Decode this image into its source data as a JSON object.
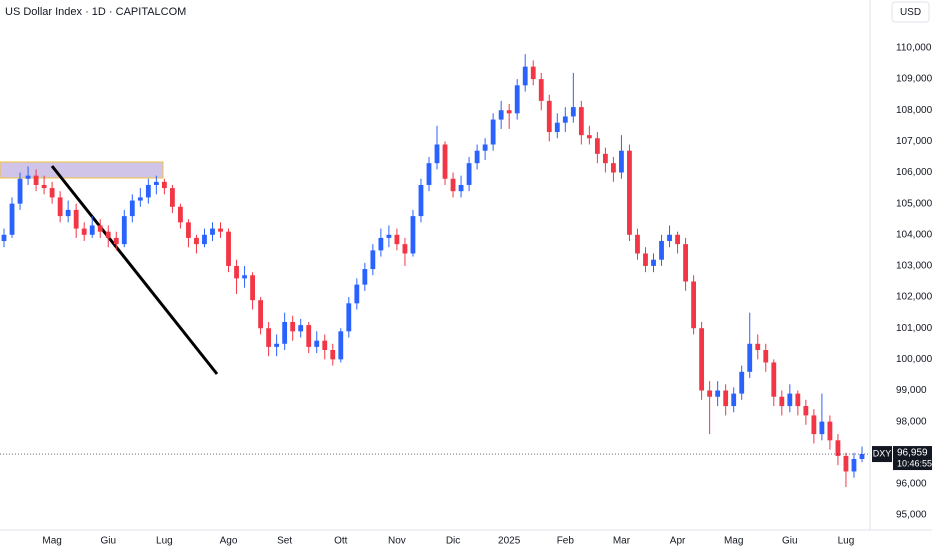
{
  "chart_data": {
    "type": "candlestick",
    "title": "US Dollar Index · 1D · CAPITALCOM",
    "currency": "USD",
    "symbol": "DXY",
    "last_price": {
      "value": 96.959,
      "label": "96,959"
    },
    "countdown": "10:46:55",
    "up_color": "#2962ff",
    "down_color": "#f23645",
    "ylim": [
      94.52,
      111.54
    ],
    "yticks": [
      {
        "value": 95,
        "label": "95,000"
      },
      {
        "value": 96,
        "label": "96,000"
      },
      {
        "value": 97,
        "label": "97,000"
      },
      {
        "value": 98,
        "label": "98,000"
      },
      {
        "value": 99,
        "label": "99,000"
      },
      {
        "value": 100,
        "label": "100,000"
      },
      {
        "value": 101,
        "label": "101,000"
      },
      {
        "value": 102,
        "label": "102,000"
      },
      {
        "value": 103,
        "label": "103,000"
      },
      {
        "value": 104,
        "label": "104,000"
      },
      {
        "value": 105,
        "label": "105,000"
      },
      {
        "value": 106,
        "label": "106,000"
      },
      {
        "value": 107,
        "label": "107,000"
      },
      {
        "value": 108,
        "label": "108,000"
      },
      {
        "value": 109,
        "label": "109,000"
      },
      {
        "value": 110,
        "label": "110,000"
      }
    ],
    "categories": [
      null,
      null,
      null,
      null,
      null,
      null,
      "Mag",
      null,
      null,
      null,
      null,
      null,
      null,
      "Giu",
      null,
      null,
      null,
      null,
      null,
      null,
      "Lug",
      null,
      null,
      null,
      null,
      null,
      null,
      null,
      "Ago",
      null,
      null,
      null,
      null,
      null,
      null,
      "Set",
      null,
      null,
      null,
      null,
      null,
      null,
      "Ott",
      null,
      null,
      null,
      null,
      null,
      null,
      "Nov",
      null,
      null,
      null,
      null,
      null,
      null,
      "Dic",
      null,
      null,
      null,
      null,
      null,
      null,
      "2025",
      null,
      null,
      null,
      null,
      null,
      null,
      "Feb",
      null,
      null,
      null,
      null,
      null,
      null,
      "Mar",
      null,
      null,
      null,
      null,
      null,
      null,
      "Apr",
      null,
      null,
      null,
      null,
      null,
      null,
      "Mag",
      null,
      null,
      null,
      null,
      null,
      null,
      "Giu",
      null,
      null,
      null,
      null,
      null,
      null,
      "Lug",
      null,
      null
    ],
    "candles": [
      [
        103.8,
        104.2,
        103.6,
        104.0
      ],
      [
        104.0,
        105.2,
        103.9,
        105.0
      ],
      [
        105.0,
        106.0,
        104.8,
        105.8
      ],
      [
        105.8,
        106.2,
        105.6,
        105.9
      ],
      [
        105.9,
        106.1,
        105.4,
        105.6
      ],
      [
        105.6,
        105.9,
        105.3,
        105.5
      ],
      [
        105.5,
        105.7,
        105.0,
        105.2
      ],
      [
        105.2,
        105.4,
        104.4,
        104.6
      ],
      [
        104.6,
        105.1,
        104.4,
        104.8
      ],
      [
        104.8,
        105.0,
        103.9,
        104.2
      ],
      [
        104.2,
        104.4,
        103.8,
        104.0
      ],
      [
        104.0,
        104.6,
        103.9,
        104.3
      ],
      [
        104.3,
        104.5,
        103.9,
        104.1
      ],
      [
        104.1,
        104.3,
        103.6,
        103.9
      ],
      [
        103.9,
        104.1,
        103.5,
        103.7
      ],
      [
        103.7,
        104.8,
        103.6,
        104.6
      ],
      [
        104.6,
        105.3,
        104.4,
        105.1
      ],
      [
        105.1,
        105.5,
        104.9,
        105.2
      ],
      [
        105.2,
        105.8,
        105.0,
        105.6
      ],
      [
        105.6,
        105.9,
        105.3,
        105.7
      ],
      [
        105.7,
        105.8,
        105.3,
        105.5
      ],
      [
        105.5,
        105.6,
        104.7,
        104.9
      ],
      [
        104.9,
        105.0,
        104.2,
        104.4
      ],
      [
        104.4,
        104.5,
        103.6,
        103.9
      ],
      [
        103.9,
        104.0,
        103.4,
        103.7
      ],
      [
        103.7,
        104.2,
        103.6,
        104.0
      ],
      [
        104.0,
        104.4,
        103.8,
        104.2
      ],
      [
        104.2,
        104.4,
        103.9,
        104.1
      ],
      [
        104.1,
        104.2,
        102.8,
        103.0
      ],
      [
        103.0,
        103.2,
        102.1,
        102.6
      ],
      [
        102.6,
        103.0,
        102.3,
        102.7
      ],
      [
        102.7,
        102.8,
        101.6,
        101.9
      ],
      [
        101.9,
        102.0,
        100.8,
        101.0
      ],
      [
        101.0,
        101.2,
        100.1,
        100.4
      ],
      [
        100.4,
        100.8,
        100.1,
        100.5
      ],
      [
        100.5,
        101.5,
        100.3,
        101.2
      ],
      [
        101.2,
        101.4,
        100.6,
        100.9
      ],
      [
        100.9,
        101.3,
        100.7,
        101.1
      ],
      [
        101.1,
        101.2,
        100.2,
        100.4
      ],
      [
        100.4,
        100.9,
        100.2,
        100.6
      ],
      [
        100.6,
        100.8,
        100.0,
        100.3
      ],
      [
        100.3,
        100.5,
        99.8,
        100.0
      ],
      [
        100.0,
        101.0,
        99.9,
        100.9
      ],
      [
        100.9,
        102.0,
        100.7,
        101.8
      ],
      [
        101.8,
        102.6,
        101.6,
        102.4
      ],
      [
        102.4,
        103.1,
        102.2,
        102.9
      ],
      [
        102.9,
        103.7,
        102.7,
        103.5
      ],
      [
        103.5,
        104.2,
        103.3,
        103.9
      ],
      [
        103.9,
        104.3,
        103.6,
        104.0
      ],
      [
        104.0,
        104.2,
        103.5,
        103.7
      ],
      [
        103.7,
        103.9,
        103.0,
        103.4
      ],
      [
        103.4,
        104.8,
        103.3,
        104.6
      ],
      [
        104.6,
        105.8,
        104.4,
        105.6
      ],
      [
        105.6,
        106.5,
        105.4,
        106.3
      ],
      [
        106.3,
        107.5,
        106.1,
        106.9
      ],
      [
        106.9,
        107.0,
        105.6,
        105.8
      ],
      [
        105.8,
        106.0,
        105.2,
        105.4
      ],
      [
        105.4,
        105.9,
        105.2,
        105.6
      ],
      [
        105.6,
        106.5,
        105.4,
        106.3
      ],
      [
        106.3,
        106.9,
        106.1,
        106.7
      ],
      [
        106.7,
        107.1,
        106.4,
        106.9
      ],
      [
        106.9,
        107.9,
        106.7,
        107.7
      ],
      [
        107.7,
        108.3,
        107.4,
        108.0
      ],
      [
        108.0,
        108.2,
        107.4,
        107.9
      ],
      [
        107.9,
        109.0,
        107.7,
        108.8
      ],
      [
        108.8,
        109.8,
        108.6,
        109.4
      ],
      [
        109.4,
        109.6,
        108.8,
        109.0
      ],
      [
        109.0,
        109.2,
        108.0,
        108.3
      ],
      [
        108.3,
        108.5,
        107.0,
        107.3
      ],
      [
        107.3,
        107.9,
        107.1,
        107.6
      ],
      [
        107.6,
        108.1,
        107.3,
        107.8
      ],
      [
        107.8,
        109.2,
        107.6,
        108.1
      ],
      [
        108.1,
        108.3,
        106.9,
        107.2
      ],
      [
        107.2,
        107.5,
        106.9,
        107.1
      ],
      [
        107.1,
        107.3,
        106.3,
        106.6
      ],
      [
        106.6,
        106.8,
        106.0,
        106.3
      ],
      [
        106.3,
        106.5,
        105.7,
        106.0
      ],
      [
        106.0,
        107.2,
        105.8,
        106.7
      ],
      [
        106.7,
        106.9,
        103.8,
        104.0
      ],
      [
        104.0,
        104.2,
        103.2,
        103.4
      ],
      [
        103.4,
        103.6,
        102.8,
        103.0
      ],
      [
        103.0,
        103.4,
        102.8,
        103.2
      ],
      [
        103.2,
        104.0,
        103.0,
        103.8
      ],
      [
        103.8,
        104.3,
        103.6,
        104.0
      ],
      [
        104.0,
        104.1,
        103.4,
        103.7
      ],
      [
        103.7,
        103.9,
        102.2,
        102.5
      ],
      [
        102.5,
        102.7,
        100.8,
        101.0
      ],
      [
        101.0,
        101.2,
        98.7,
        99.0
      ],
      [
        99.0,
        99.3,
        97.6,
        98.8
      ],
      [
        98.8,
        99.3,
        98.5,
        99.0
      ],
      [
        99.0,
        99.2,
        98.2,
        98.5
      ],
      [
        98.5,
        99.1,
        98.3,
        98.9
      ],
      [
        98.9,
        99.8,
        98.7,
        99.6
      ],
      [
        99.6,
        101.5,
        99.4,
        100.5
      ],
      [
        100.5,
        100.8,
        100.0,
        100.3
      ],
      [
        100.3,
        100.5,
        99.6,
        99.9
      ],
      [
        99.9,
        100.0,
        98.5,
        98.8
      ],
      [
        98.8,
        99.0,
        98.2,
        98.5
      ],
      [
        98.5,
        99.2,
        98.3,
        98.9
      ],
      [
        98.9,
        99.0,
        98.2,
        98.5
      ],
      [
        98.5,
        98.7,
        97.9,
        98.2
      ],
      [
        98.2,
        98.4,
        97.3,
        97.6
      ],
      [
        97.6,
        98.9,
        97.4,
        98.0
      ],
      [
        98.0,
        98.2,
        97.1,
        97.4
      ],
      [
        97.4,
        97.6,
        96.6,
        96.9
      ],
      [
        96.9,
        97.0,
        95.9,
        96.4
      ],
      [
        96.4,
        97.0,
        96.2,
        96.8
      ],
      [
        96.8,
        97.2,
        96.7,
        96.959
      ]
    ]
  }
}
